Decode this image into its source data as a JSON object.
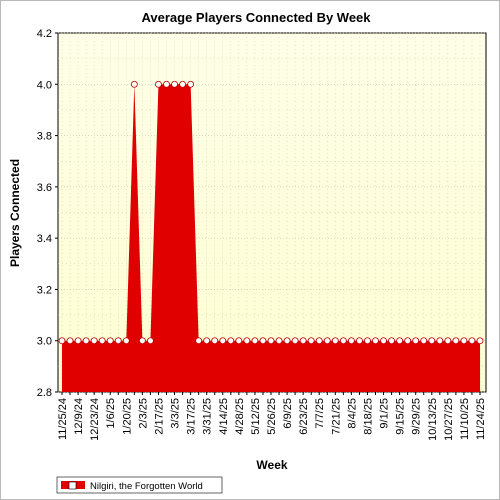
{
  "chart_data": {
    "type": "area",
    "title": "Average Players Connected By Week",
    "xlabel": "Week",
    "ylabel": "Players Connected",
    "ylim": [
      2.8,
      4.2
    ],
    "yticks": [
      "2.8",
      "3.0",
      "3.2",
      "3.4",
      "3.6",
      "3.8",
      "4.0",
      "4.2"
    ],
    "grid": true,
    "legend_position": "bottom-left",
    "colors": {
      "series": "#e00000",
      "plot_bg_top": "#ffffe6",
      "plot_bg_bottom": "#fefed8",
      "grid": "#c8c8a8"
    },
    "x": [
      "11/25/24",
      "12/2/24",
      "12/9/24",
      "12/16/24",
      "12/23/24",
      "12/30/24",
      "1/6/25",
      "1/13/25",
      "1/20/25",
      "1/27/25",
      "2/3/25",
      "2/10/25",
      "2/17/25",
      "2/24/25",
      "3/3/25",
      "3/10/25",
      "3/17/25",
      "3/24/25",
      "3/31/25",
      "4/7/25",
      "4/14/25",
      "4/21/25",
      "4/28/25",
      "5/5/25",
      "5/12/25",
      "5/19/25",
      "5/26/25",
      "6/2/25",
      "6/9/25",
      "6/16/25",
      "6/23/25",
      "6/30/25",
      "7/7/25",
      "7/14/25",
      "7/21/25",
      "7/28/25",
      "8/4/25",
      "8/11/25",
      "8/18/25",
      "8/25/25",
      "9/1/25",
      "9/8/25",
      "9/15/25",
      "9/22/25",
      "9/29/25",
      "10/6/25",
      "10/13/25",
      "10/20/25",
      "10/27/25",
      "11/3/25",
      "11/10/25",
      "11/17/25",
      "11/24/25"
    ],
    "xtick_labels": [
      "11/25/24",
      "12/9/24",
      "12/23/24",
      "1/6/25",
      "1/20/25",
      "2/3/25",
      "2/17/25",
      "3/3/25",
      "3/17/25",
      "3/31/25",
      "4/14/25",
      "4/28/25",
      "5/12/25",
      "5/26/25",
      "6/9/25",
      "6/23/25",
      "7/7/25",
      "7/21/25",
      "8/4/25",
      "8/18/25",
      "9/1/25",
      "9/15/25",
      "9/29/25",
      "10/13/25",
      "10/27/25",
      "11/10/25",
      "11/24/25"
    ],
    "series": [
      {
        "name": "Nilgiri, the Forgotten World",
        "values": [
          3,
          3,
          3,
          3,
          3,
          3,
          3,
          3,
          3,
          4,
          3,
          3,
          4,
          4,
          4,
          4,
          4,
          3,
          3,
          3,
          3,
          3,
          3,
          3,
          3,
          3,
          3,
          3,
          3,
          3,
          3,
          3,
          3,
          3,
          3,
          3,
          3,
          3,
          3,
          3,
          3,
          3,
          3,
          3,
          3,
          3,
          3,
          3,
          3,
          3,
          3,
          3,
          3
        ]
      }
    ]
  }
}
